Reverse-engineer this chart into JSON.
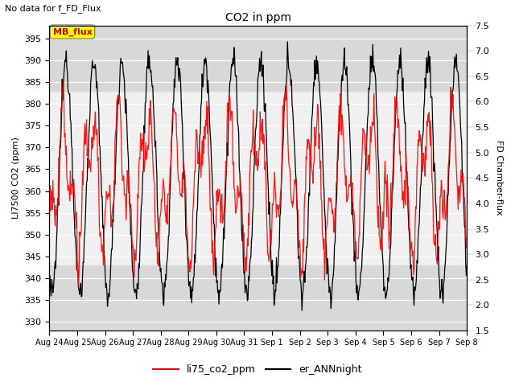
{
  "title": "CO2 in ppm",
  "subtitle": "No data for f_FD_Flux",
  "ylabel_left": "LI7500 CO2 (ppm)",
  "ylabel_right": "FD Chamber-flux",
  "ylim_left": [
    328,
    398
  ],
  "ylim_right": [
    1.5,
    7.5
  ],
  "yticks_left": [
    330,
    335,
    340,
    345,
    350,
    355,
    360,
    365,
    370,
    375,
    380,
    385,
    390,
    395
  ],
  "yticks_right": [
    1.5,
    2.0,
    2.5,
    3.0,
    3.5,
    4.0,
    4.5,
    5.0,
    5.5,
    6.0,
    6.5,
    7.0,
    7.5
  ],
  "xtick_labels": [
    "Aug 24",
    "Aug 25",
    "Aug 26",
    "Aug 27",
    "Aug 28",
    "Aug 29",
    "Aug 30",
    "Aug 31",
    "Sep 1",
    "Sep 2",
    "Sep 3",
    "Sep 4",
    "Sep 5",
    "Sep 6",
    "Sep 7",
    "Sep 8"
  ],
  "legend_label_red": "li75_co2_ppm",
  "legend_label_black": "er_ANNnight",
  "mb_flux_label": "MB_flux",
  "line_color_red": "#ff0000",
  "line_color_black": "#000000",
  "bg_color": "#d8d8d8",
  "bg_band_ranges": [
    [
      383,
      398
    ],
    [
      328,
      343
    ]
  ],
  "mb_flux_box_color": "#ffff00",
  "mb_flux_text_color": "#cc0000",
  "mb_flux_border_color": "#888888"
}
